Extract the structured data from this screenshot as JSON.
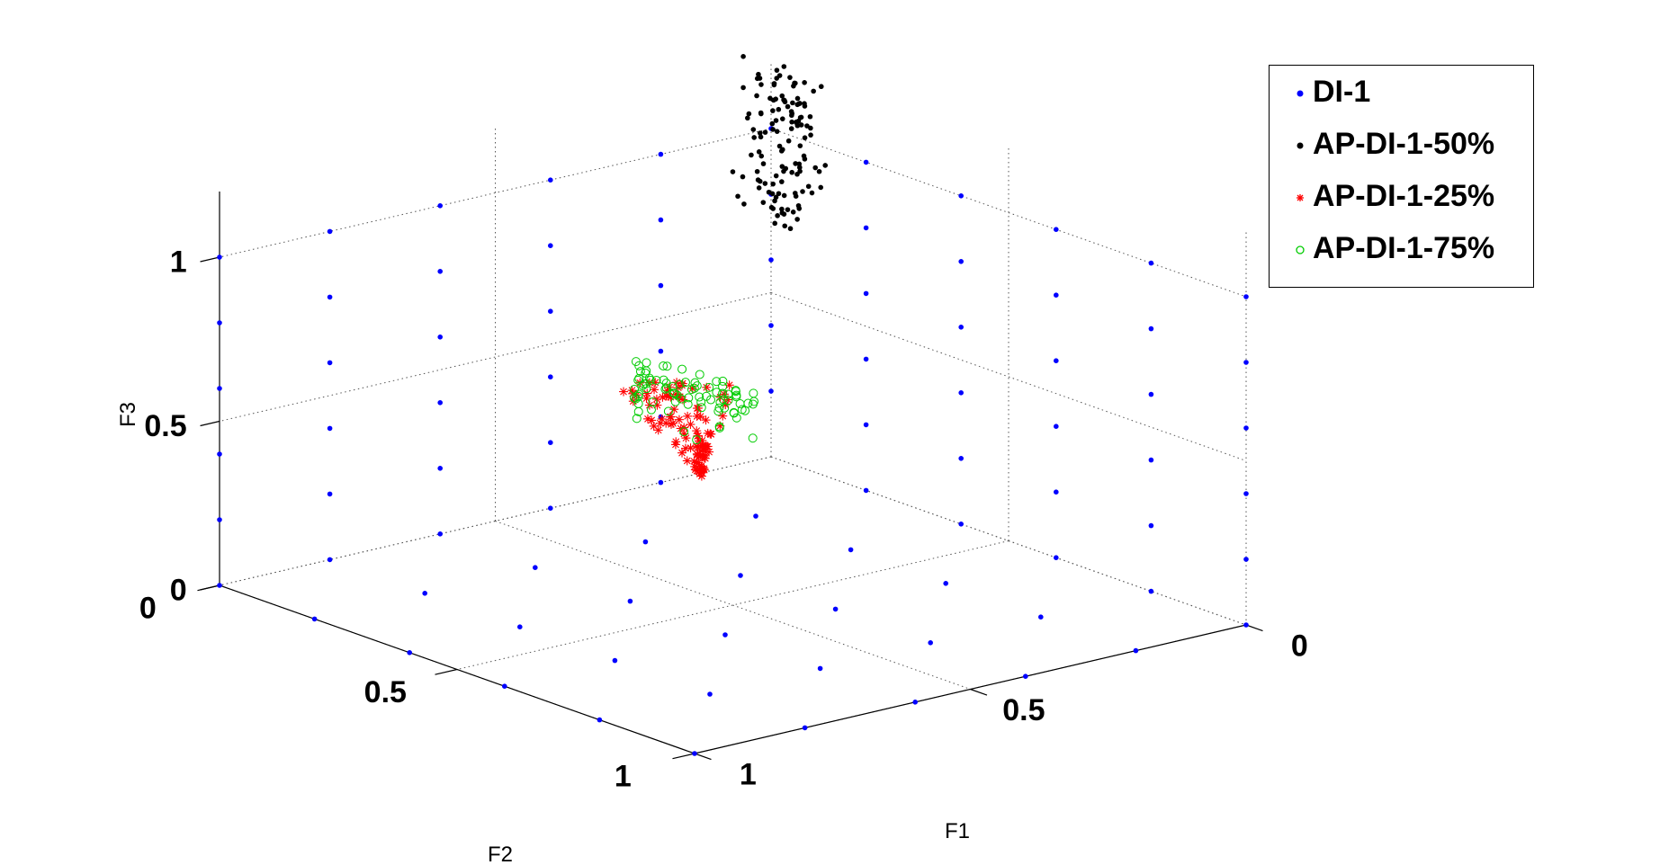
{
  "chart_data": {
    "type": "scatter",
    "dimensions": 3,
    "xlabel": "F1",
    "ylabel": "F2",
    "zlabel": "F3",
    "xlim": [
      0,
      1
    ],
    "ylim": [
      0,
      1
    ],
    "zlim": [
      0,
      1.2
    ],
    "xticks": [
      "0",
      "0.5",
      "1"
    ],
    "yticks": [
      "0",
      "0.5",
      "1"
    ],
    "zticks": [
      "0",
      "0.5",
      "1"
    ],
    "grid": true,
    "legend_position": "top-right",
    "series": [
      {
        "name": "DI-1",
        "marker": "dot",
        "color": "#0000ff",
        "description": "uniform grid of points on the three planes F1=0, F2=0, F3=0 with step 0.2"
      },
      {
        "name": "AP-DI-1-50%",
        "marker": "dot",
        "color": "#000000",
        "description": "dense cluster around F1≈0.05, F2≈0.05, F3≈0.45–0.9"
      },
      {
        "name": "AP-DI-1-25%",
        "marker": "asterisk",
        "color": "#ff0000",
        "description": "dense cluster around F1≈0.15–0.3, F2≈0.15–0.3, F3≈0.2–0.4"
      },
      {
        "name": "AP-DI-1-75%",
        "marker": "circle",
        "color": "#00cc00",
        "description": "dense cluster near F1≈0.05, F2≈0.2, F3≈0.5–0.8"
      }
    ]
  }
}
